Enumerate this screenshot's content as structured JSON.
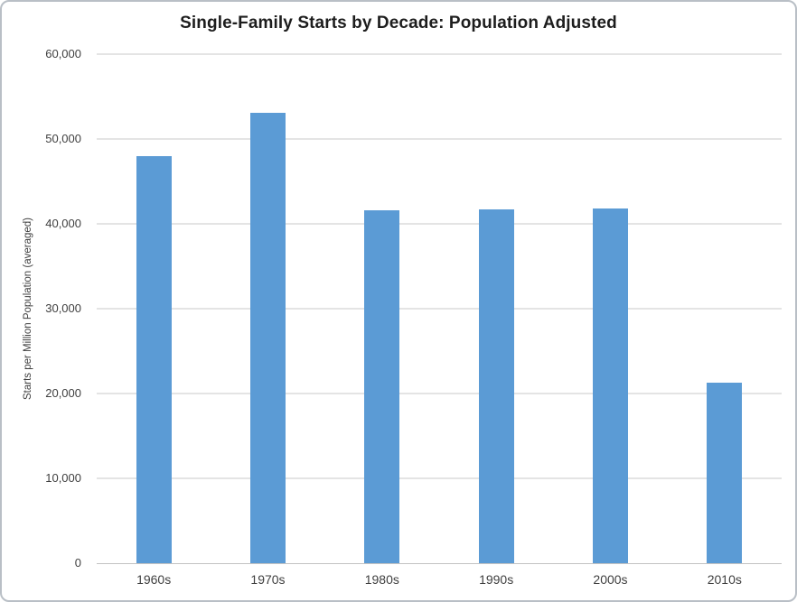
{
  "chart_data": {
    "type": "bar",
    "title": "Single-Family Starts by Decade: Population Adjusted",
    "xlabel": "",
    "ylabel": "Starts per Million Population (averaged)",
    "categories": [
      "1960s",
      "1970s",
      "1980s",
      "1990s",
      "2000s",
      "2010s"
    ],
    "values": [
      48000,
      53100,
      41600,
      41700,
      41800,
      21300
    ],
    "ylim": [
      0,
      60000
    ],
    "ytick_step": 10000,
    "ytick_labels": [
      "0",
      "10,000",
      "20,000",
      "30,000",
      "40,000",
      "50,000",
      "60,000"
    ],
    "grid": true,
    "legend": false,
    "colors": {
      "bar": "#5B9BD5",
      "gridline": "#e4e4e4",
      "axis_line": "#c3c3c3",
      "tick_text": "#3f3f3f",
      "title_text": "#1d1d1d"
    }
  }
}
